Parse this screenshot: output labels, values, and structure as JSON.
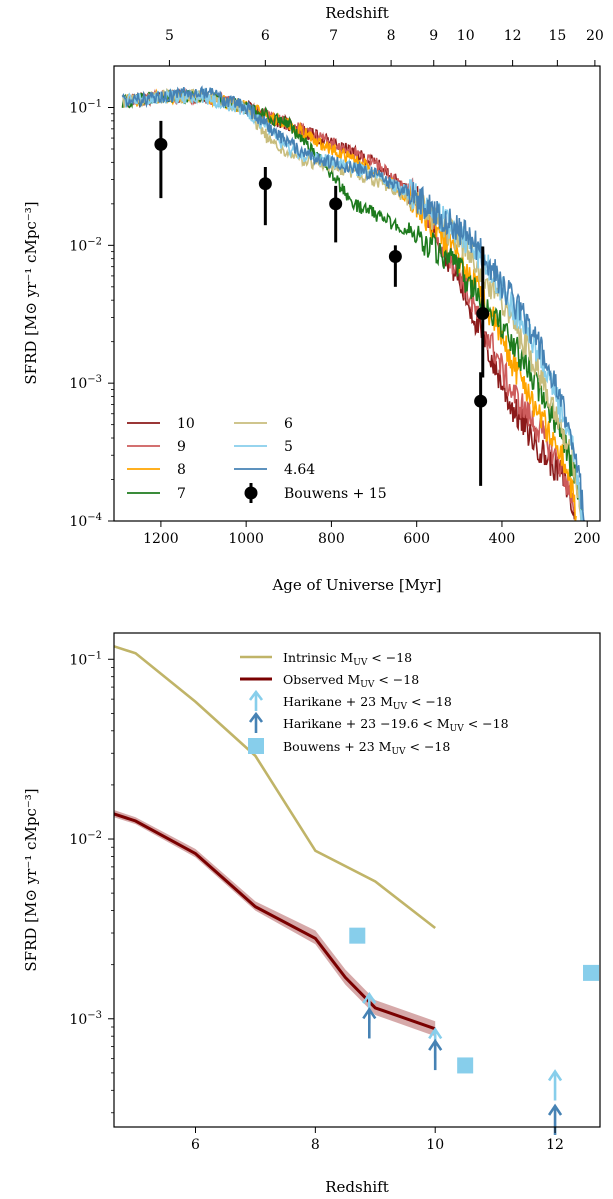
{
  "chart_data": [
    {
      "type": "line",
      "panel": "top",
      "xlabel": "Age of Universe [Myr]",
      "ylabel": "SFRD [M⊙ yr⁻¹ cMpc⁻³]",
      "top_xlabel": "Redshift",
      "x_reversed": true,
      "xlim": [
        1310,
        170
      ],
      "ylim": [
        0.0001,
        0.2
      ],
      "yscale": "log",
      "x_ticks": [
        1200,
        1000,
        800,
        600,
        400,
        200
      ],
      "x_tick_labels": [
        "1200",
        "1000",
        "800",
        "600",
        "400",
        "200"
      ],
      "y_ticks": [
        0.0001,
        0.001,
        0.01,
        0.1
      ],
      "y_tick_labels": [
        [
          "10",
          "−4"
        ],
        [
          "10",
          "−3"
        ],
        [
          "10",
          "−2"
        ],
        [
          "10",
          "−1"
        ]
      ],
      "top_ticks": [
        {
          "label": "5",
          "x": 1180
        },
        {
          "label": "6",
          "x": 955
        },
        {
          "label": "7",
          "x": 795
        },
        {
          "label": "8",
          "x": 660
        },
        {
          "label": "9",
          "x": 560
        },
        {
          "label": "10",
          "x": 485
        },
        {
          "label": "12",
          "x": 375
        },
        {
          "label": "15",
          "x": 270
        },
        {
          "label": "20",
          "x": 182
        }
      ],
      "series": [
        {
          "name": "10",
          "color": "#8b1a1a",
          "x": [
            1290,
            1200,
            1100,
            1000,
            900,
            800,
            700,
            600,
            550,
            500,
            460,
            420,
            380,
            340,
            300,
            260,
            240,
            230
          ],
          "y": [
            0.11,
            0.12,
            0.12,
            0.1,
            0.075,
            0.055,
            0.04,
            0.022,
            0.012,
            0.0055,
            0.0028,
            0.0014,
            0.0007,
            0.00045,
            0.0003,
            0.00022,
            0.00015,
            0.0001
          ]
        },
        {
          "name": "9",
          "color": "#cd5c5c",
          "x": [
            1290,
            1200,
            1100,
            1000,
            900,
            800,
            700,
            600,
            550,
            500,
            460,
            420,
            380,
            340,
            300,
            260,
            240,
            230
          ],
          "y": [
            0.11,
            0.12,
            0.12,
            0.1,
            0.075,
            0.055,
            0.04,
            0.022,
            0.012,
            0.0065,
            0.0032,
            0.0018,
            0.0009,
            0.0006,
            0.0004,
            0.00025,
            0.00016,
            0.0001
          ]
        },
        {
          "name": "8",
          "color": "#ffa500",
          "x": [
            1290,
            1200,
            1100,
            1000,
            900,
            800,
            700,
            600,
            550,
            500,
            460,
            420,
            380,
            340,
            300,
            260,
            240,
            225
          ],
          "y": [
            0.11,
            0.12,
            0.12,
            0.1,
            0.075,
            0.05,
            0.035,
            0.02,
            0.012,
            0.008,
            0.005,
            0.0028,
            0.0015,
            0.0009,
            0.0005,
            0.0003,
            0.0002,
            0.0001
          ]
        },
        {
          "name": "7",
          "color": "#1e7b1e",
          "x": [
            1290,
            1200,
            1100,
            1000,
            900,
            800,
            750,
            700,
            650,
            600,
            550,
            500,
            460,
            420,
            380,
            340,
            300,
            260,
            230,
            210
          ],
          "y": [
            0.11,
            0.12,
            0.12,
            0.1,
            0.075,
            0.033,
            0.02,
            0.017,
            0.014,
            0.012,
            0.009,
            0.0065,
            0.0045,
            0.0032,
            0.002,
            0.0013,
            0.0008,
            0.0004,
            0.00022,
            0.0001
          ]
        },
        {
          "name": "6",
          "color": "#c8bd7d",
          "x": [
            1290,
            1200,
            1100,
            1000,
            950,
            900,
            850,
            800,
            700,
            600,
            500,
            460,
            420,
            380,
            340,
            300,
            260,
            230,
            210
          ],
          "y": [
            0.11,
            0.12,
            0.12,
            0.1,
            0.06,
            0.045,
            0.04,
            0.038,
            0.03,
            0.02,
            0.011,
            0.0075,
            0.0048,
            0.003,
            0.0018,
            0.001,
            0.0005,
            0.00025,
            0.0001
          ]
        },
        {
          "name": "5",
          "color": "#87ceeb",
          "x": [
            1290,
            1200,
            1100,
            1000,
            950,
            900,
            850,
            800,
            700,
            600,
            500,
            460,
            420,
            380,
            340,
            300,
            260,
            230,
            210
          ],
          "y": [
            0.11,
            0.12,
            0.12,
            0.095,
            0.07,
            0.05,
            0.043,
            0.04,
            0.033,
            0.022,
            0.012,
            0.009,
            0.006,
            0.0038,
            0.0024,
            0.0013,
            0.0006,
            0.0003,
            0.0001
          ]
        },
        {
          "name": "4.64",
          "color": "#4682b4",
          "x": [
            1290,
            1200,
            1100,
            1000,
            950,
            900,
            850,
            800,
            700,
            600,
            500,
            460,
            420,
            380,
            340,
            300,
            260,
            230,
            205
          ],
          "y": [
            0.11,
            0.12,
            0.13,
            0.1,
            0.075,
            0.055,
            0.045,
            0.04,
            0.033,
            0.022,
            0.013,
            0.01,
            0.0065,
            0.0042,
            0.0028,
            0.0015,
            0.0007,
            0.00035,
            0.0001
          ]
        }
      ],
      "points": {
        "name": "Bouwens + 15",
        "color": "#000000",
        "x": [
          1200,
          955,
          790,
          650,
          445,
          450
        ],
        "y": [
          0.054,
          0.028,
          0.02,
          0.0083,
          0.0032,
          0.00074
        ],
        "ylo": [
          0.022,
          0.014,
          0.0105,
          0.005,
          0.0011,
          0.00018
        ],
        "yhi": [
          0.08,
          0.037,
          0.027,
          0.01,
          0.0098,
          0.0012
        ]
      },
      "legend": {
        "col1": [
          "10",
          "9",
          "8",
          "7"
        ],
        "col2": [
          "6",
          "5",
          "4.64",
          "Bouwens + 15"
        ]
      }
    },
    {
      "type": "line",
      "panel": "bottom",
      "xlabel": "Redshift",
      "ylabel": "SFRD [M⊙ yr⁻¹ cMpc⁻³]",
      "xlim": [
        4.64,
        12.75
      ],
      "ylim": [
        0.00025,
        0.14
      ],
      "yscale": "log",
      "x_ticks": [
        6,
        8,
        10,
        12
      ],
      "x_tick_labels": [
        "6",
        "8",
        "10",
        "12"
      ],
      "y_ticks": [
        0.001,
        0.01,
        0.1
      ],
      "y_tick_labels": [
        [
          "10",
          "−3"
        ],
        [
          "10",
          "−2"
        ],
        [
          "10",
          "−1"
        ]
      ],
      "series": [
        {
          "name": "Intrinsic",
          "label": "M<sub>UV</sub> < −18",
          "color": "#c0b468",
          "x": [
            4.64,
            5,
            6,
            7,
            8,
            9,
            10
          ],
          "y": [
            0.118,
            0.108,
            0.058,
            0.029,
            0.0086,
            0.0058,
            0.0032
          ]
        },
        {
          "name": "Observed",
          "label": "M<sub>UV</sub> < −18",
          "color": "#7a0000",
          "band_color": "#cf9a9a",
          "x": [
            4.64,
            5,
            6,
            7,
            8,
            8.5,
            9,
            10
          ],
          "y": [
            0.0138,
            0.0126,
            0.0083,
            0.0042,
            0.0028,
            0.0017,
            0.00115,
            0.00088
          ],
          "band_lo": [
            0.0132,
            0.0121,
            0.0079,
            0.004,
            0.0026,
            0.00155,
            0.00105,
            0.0008
          ],
          "band_hi": [
            0.0145,
            0.0132,
            0.0088,
            0.0045,
            0.0031,
            0.00188,
            0.00127,
            0.00097
          ]
        }
      ],
      "harikane_full": {
        "name": "Harikane + 23 M<sub>UV</sub> < −18",
        "color": "#87ceeb",
        "x": [
          8.9,
          10.0,
          12.0
        ],
        "y": [
          0.00113,
          0.00072,
          0.00042
        ]
      },
      "harikane_bright": {
        "name": "Harikane + 23 −19.6 < M<sub>UV</sub> < −18",
        "color": "#4682b4",
        "x": [
          8.9,
          10.0,
          12.0
        ],
        "y": [
          0.00093,
          0.00062,
          0.00027
        ]
      },
      "bouwens23": {
        "name": "Bouwens + 23 M<sub>UV</sub> < −18",
        "color": "#87ceeb",
        "x": [
          8.7,
          10.5,
          12.6
        ],
        "y": [
          0.0029,
          0.00055,
          0.0018
        ]
      },
      "legend_labels": {
        "intrinsic": [
          "Intrinsic M",
          "UV",
          " < −18"
        ],
        "observed": [
          "Observed M",
          "UV",
          " < −18"
        ],
        "harikane_full": [
          "Harikane + 23 M",
          "UV",
          " < −18"
        ],
        "harikane_bright": [
          "Harikane + 23 −19.6 < M",
          "UV",
          " < −18"
        ],
        "bouwens23": [
          "Bouwens + 23 M",
          "UV",
          " < −18"
        ]
      }
    }
  ]
}
